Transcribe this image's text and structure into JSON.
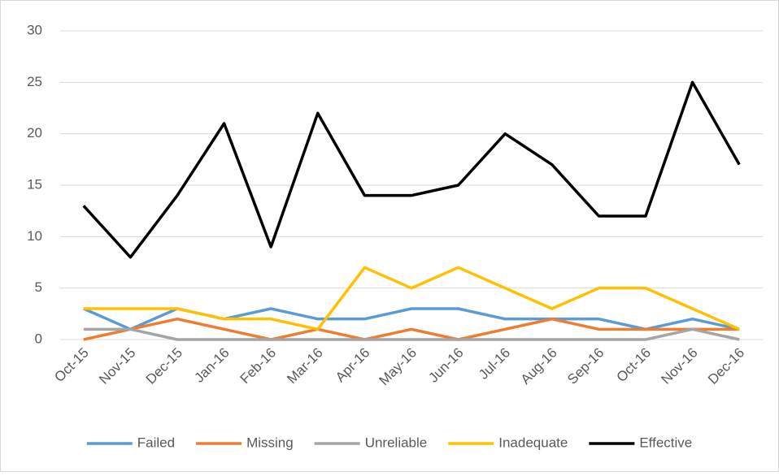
{
  "chart_data": {
    "type": "line",
    "categories": [
      "Oct-15",
      "Nov-15",
      "Dec-15",
      "Jan-16",
      "Feb-16",
      "Mar-16",
      "Apr-16",
      "May-16",
      "Jun-16",
      "Jul-16",
      "Aug-16",
      "Sep-16",
      "Oct-16",
      "Nov-16",
      "Dec-16"
    ],
    "series": [
      {
        "name": "Failed",
        "color": "#5b9bd5",
        "values": [
          3,
          1,
          3,
          2,
          3,
          2,
          2,
          3,
          3,
          2,
          2,
          2,
          1,
          2,
          1
        ]
      },
      {
        "name": "Missing",
        "color": "#ed7d31",
        "values": [
          0,
          1,
          2,
          1,
          0,
          1,
          0,
          1,
          0,
          1,
          2,
          1,
          1,
          1,
          1
        ]
      },
      {
        "name": "Unreliable",
        "color": "#a5a5a5",
        "values": [
          1,
          1,
          0,
          0,
          0,
          0,
          0,
          0,
          0,
          0,
          0,
          0,
          0,
          1,
          0
        ]
      },
      {
        "name": "Inadequate",
        "color": "#ffc000",
        "values": [
          3,
          3,
          3,
          2,
          2,
          1,
          7,
          5,
          7,
          5,
          3,
          5,
          5,
          3,
          1
        ]
      },
      {
        "name": "Effective",
        "color": "#000000",
        "values": [
          13,
          8,
          14,
          21,
          9,
          22,
          14,
          14,
          15,
          20,
          17,
          12,
          12,
          25,
          17
        ]
      }
    ],
    "ylim": [
      0,
      30
    ],
    "yticks": [
      0,
      5,
      10,
      15,
      20,
      25,
      30
    ],
    "grid": true,
    "legend": "bottom"
  }
}
